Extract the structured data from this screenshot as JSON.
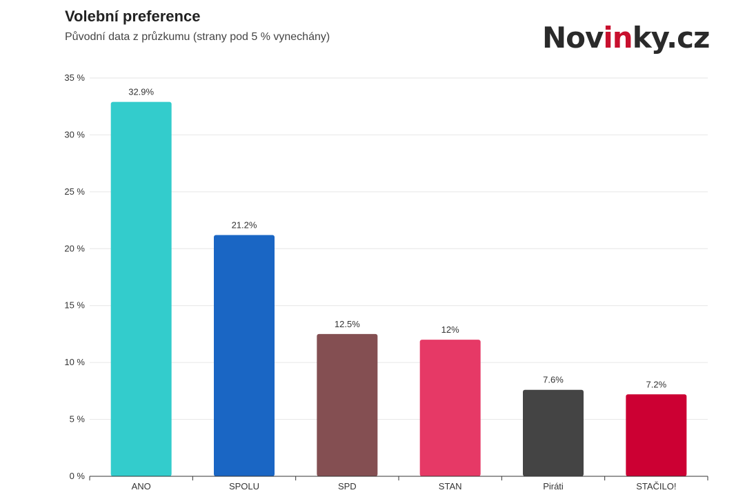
{
  "header": {
    "title": "Volební preference",
    "subtitle": "Původní data z průzkumu (strany pod 5 % vynechány)"
  },
  "logo": {
    "text": "Novinky.cz",
    "part1": "Nov",
    "accent": "in",
    "part2": "ky.cz",
    "accent_color": "#c8102e"
  },
  "chart_data": {
    "type": "bar",
    "title": "Volební preference",
    "subtitle": "Původní data z průzkumu (strany pod 5 % vynechány)",
    "categories": [
      "ANO",
      "SPOLU",
      "SPD",
      "STAN",
      "Piráti",
      "STAČILO!"
    ],
    "values": [
      32.9,
      21.2,
      12.5,
      12,
      7.6,
      7.2
    ],
    "value_labels": [
      "32.9%",
      "21.2%",
      "12.5%",
      "12%",
      "7.6%",
      "7.2%"
    ],
    "colors": [
      "#33cccc",
      "#1a66c4",
      "#844f52",
      "#e63966",
      "#444444",
      "#cc0033"
    ],
    "ylim": [
      0,
      35
    ],
    "yticks": [
      0,
      5,
      10,
      15,
      20,
      25,
      30,
      35
    ],
    "ytick_labels": [
      "0 %",
      "5 %",
      "10 %",
      "15 %",
      "20 %",
      "25 %",
      "30 %",
      "35 %"
    ],
    "grid": true,
    "xlabel": "",
    "ylabel": ""
  }
}
